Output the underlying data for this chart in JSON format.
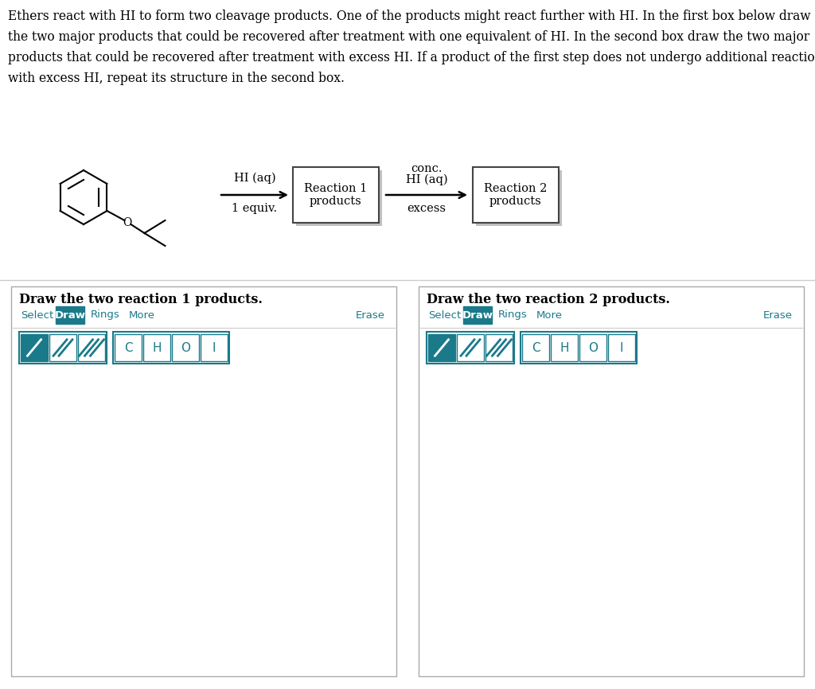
{
  "background_color": "#ffffff",
  "text_color": "#000000",
  "teal_color": "#1a7a8a",
  "description_lines": [
    "Ethers react with HI to form two cleavage products. One of the products might react further with HI. In the first box below draw",
    "the two major products that could be recovered after treatment with one equivalent of HI. In the second box draw the two major",
    "products that could be recovered after treatment with excess HI. If a product of the first step does not undergo additional reaction",
    "with excess HI, repeat its structure in the second box."
  ],
  "reaction_scheme": {
    "arrow1_label_top": "HI (aq)",
    "arrow1_label_bottom": "1 equiv.",
    "box1_label": "Reaction 1\nproducts",
    "arrow2_label_top_line1": "conc.",
    "arrow2_label_top_line2": "HI (aq)",
    "arrow2_label_bottom": "excess",
    "box2_label": "Reaction 2\nproducts"
  },
  "panel1_title": "Draw the two reaction 1 products.",
  "panel2_title": "Draw the two reaction 2 products.",
  "draw_buttons": [
    "/",
    "//",
    "///"
  ],
  "atom_buttons": [
    "C",
    "H",
    "O",
    "I"
  ]
}
